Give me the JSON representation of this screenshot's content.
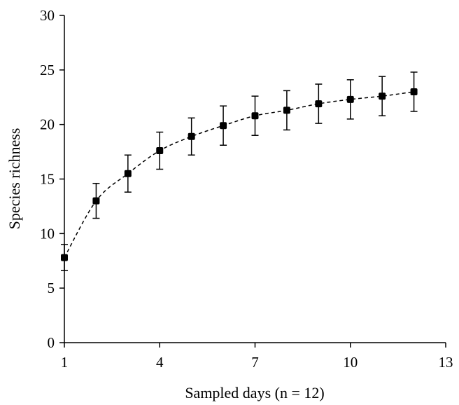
{
  "chart_data": {
    "type": "line",
    "xlabel": "Sampled days (n = 12)",
    "ylabel": "Species richness",
    "xlim": [
      1,
      13
    ],
    "ylim": [
      0,
      30
    ],
    "x_ticks": [
      1,
      4,
      7,
      10,
      13
    ],
    "y_ticks": [
      0,
      5,
      10,
      15,
      20,
      25,
      30
    ],
    "grid": false,
    "line_style": "dashed",
    "marker": "square",
    "series": [
      {
        "x": [
          1,
          2,
          3,
          4,
          5,
          6,
          7,
          8,
          9,
          10,
          11,
          12
        ],
        "y": [
          7.8,
          13.0,
          15.5,
          17.6,
          18.9,
          19.9,
          20.8,
          21.3,
          21.9,
          22.3,
          22.6,
          23.0
        ],
        "error": [
          1.2,
          1.6,
          1.7,
          1.7,
          1.7,
          1.8,
          1.8,
          1.8,
          1.8,
          1.8,
          1.8,
          1.8
        ]
      }
    ],
    "colors": {
      "line": "#000000",
      "marker": "#000000",
      "axis": "#000000"
    }
  }
}
